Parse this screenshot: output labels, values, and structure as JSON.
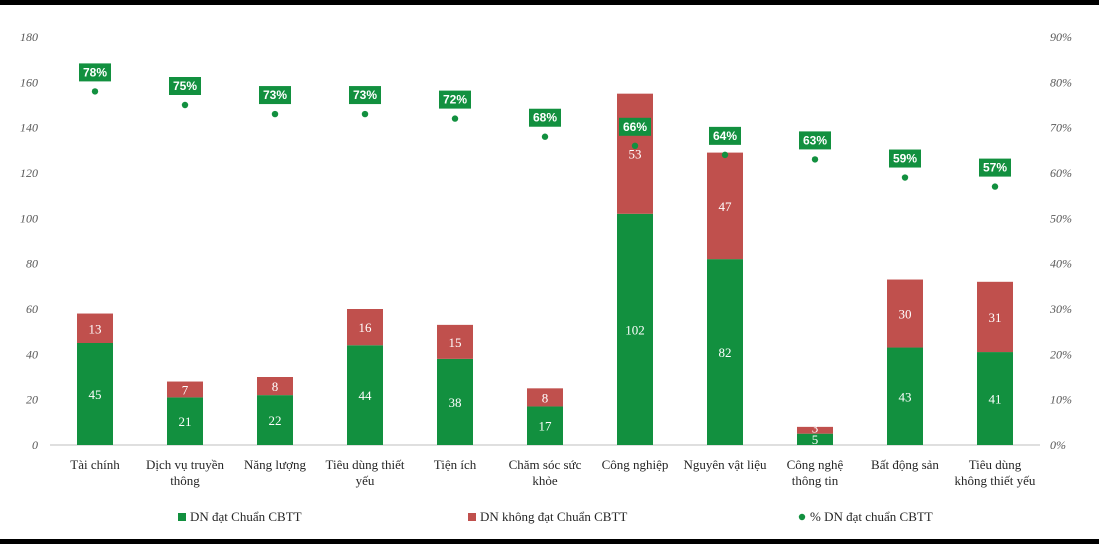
{
  "chart_data": {
    "type": "bar",
    "stacked": true,
    "categories": [
      [
        "Tài chính"
      ],
      [
        "Dịch vụ truyền",
        "thông"
      ],
      [
        "Năng lượng"
      ],
      [
        "Tiêu dùng thiết",
        "yếu"
      ],
      [
        "Tiện ích"
      ],
      [
        "Chăm sóc sức",
        "khỏe"
      ],
      [
        "Công nghiệp"
      ],
      [
        "Nguyên vật liệu"
      ],
      [
        "Công nghệ",
        "thông tin"
      ],
      [
        "Bất động sản"
      ],
      [
        "Tiêu dùng",
        "không thiết yếu"
      ]
    ],
    "series": [
      {
        "name": "DN đạt Chuẩn CBTT",
        "color": "#12903f",
        "axis": "left",
        "values": [
          45,
          21,
          22,
          44,
          38,
          17,
          102,
          82,
          5,
          43,
          41
        ]
      },
      {
        "name": "DN không đạt Chuẩn CBTT",
        "color": "#c0504d",
        "axis": "left",
        "values": [
          13,
          7,
          8,
          16,
          15,
          8,
          53,
          47,
          3,
          30,
          31
        ]
      },
      {
        "name": "% DN đạt chuẩn CBTT",
        "color": "#12903f",
        "axis": "right",
        "kind": "scatter",
        "values": [
          78,
          75,
          73,
          73,
          72,
          68,
          66,
          64,
          63,
          59,
          57
        ],
        "labels": [
          "78%",
          "75%",
          "73%",
          "73%",
          "72%",
          "68%",
          "66%",
          "64%",
          "63%",
          "59%",
          "57%"
        ]
      }
    ],
    "ylim": [
      0,
      180
    ],
    "y_ticks": [
      "0",
      "20",
      "40",
      "60",
      "80",
      "100",
      "120",
      "140",
      "160",
      "180"
    ],
    "y2lim": [
      0,
      90
    ],
    "y2_ticks": [
      "0%",
      "10%",
      "20%",
      "30%",
      "40%",
      "50%",
      "60%",
      "70%",
      "80%",
      "90%"
    ],
    "title": "",
    "xlabel": "",
    "ylabel": "",
    "legend_position": "bottom",
    "grid": false
  }
}
